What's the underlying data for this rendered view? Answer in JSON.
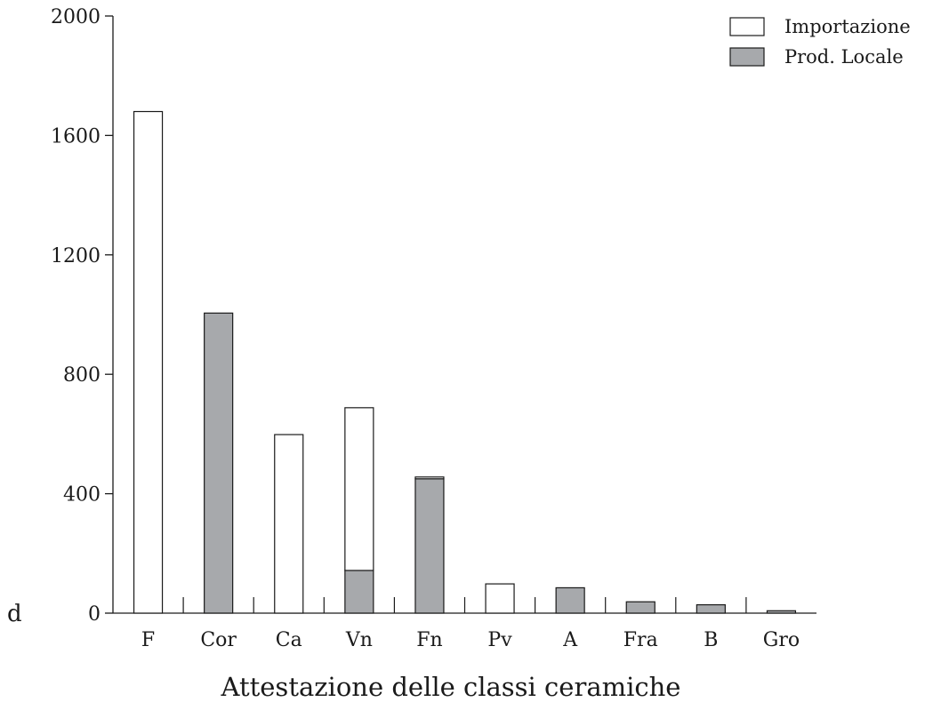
{
  "chart_data": {
    "type": "bar",
    "stacked": true,
    "title": "",
    "xlabel": "Attestazione delle classi ceramiche",
    "ylabel": "",
    "corner_label": "d",
    "ylim": [
      0,
      2000
    ],
    "yticks": [
      0,
      400,
      800,
      1200,
      1600,
      2000
    ],
    "categories": [
      "F",
      "Cor",
      "Ca",
      "Vn",
      "Fn",
      "Pv",
      "A",
      "Fra",
      "B",
      "Gro"
    ],
    "series": [
      {
        "name": "Prod. Locale",
        "color": "#a7a9ac",
        "values": [
          0,
          1005,
          0,
          143,
          450,
          0,
          85,
          38,
          28,
          8
        ]
      },
      {
        "name": "Importazione",
        "color": "#ffffff",
        "values": [
          1680,
          0,
          598,
          545,
          6,
          98,
          0,
          0,
          0,
          0
        ]
      }
    ],
    "legend": {
      "position": "top-right",
      "order": [
        "Importazione",
        "Prod. Locale"
      ]
    },
    "grid": false
  }
}
